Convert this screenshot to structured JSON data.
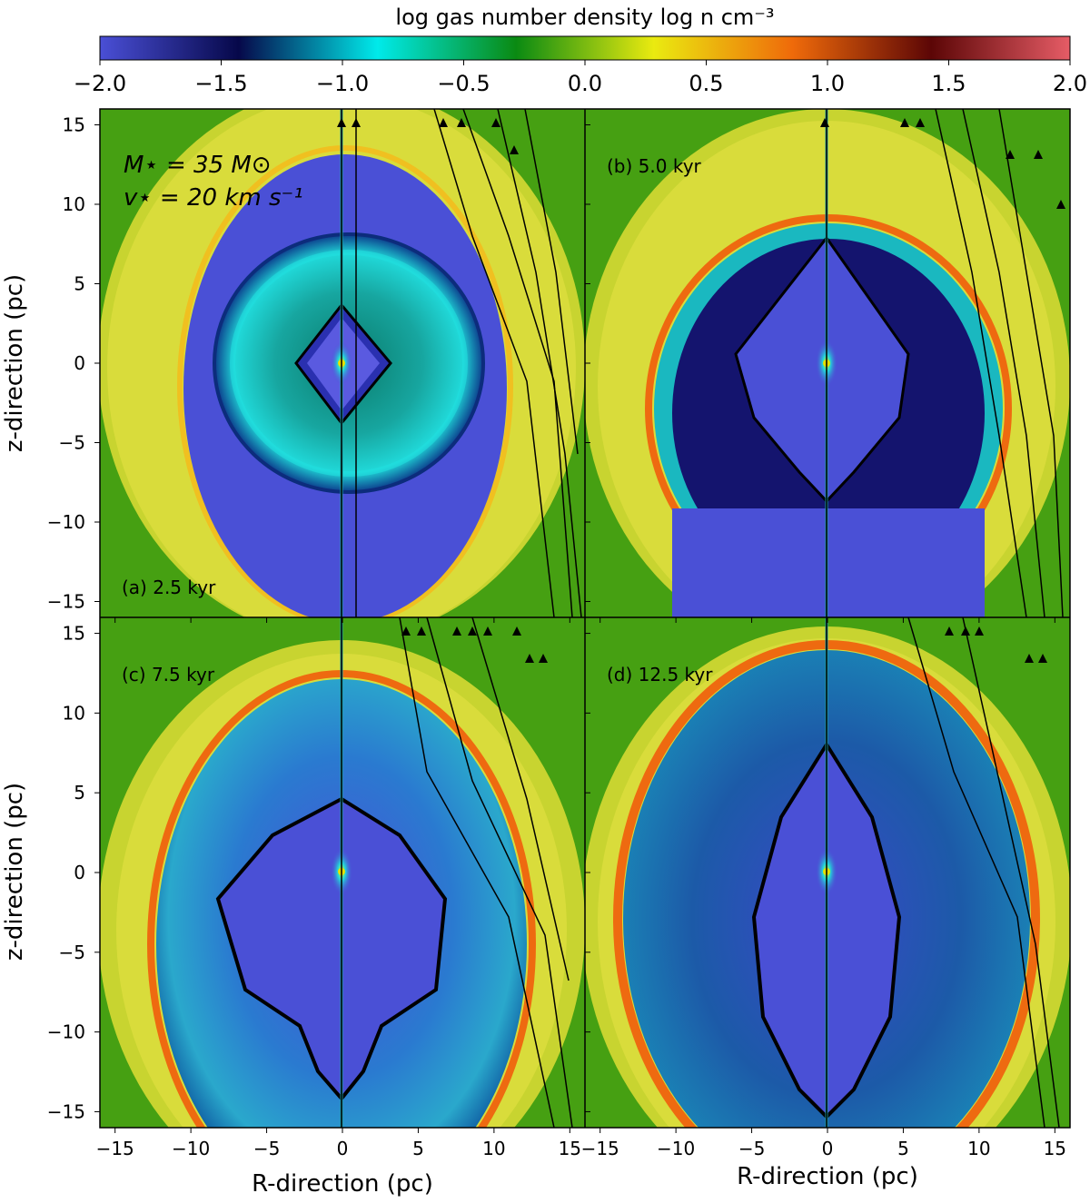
{
  "colorbar": {
    "title": "log gas number density log n cm⁻³",
    "ticks": [
      "−2.0",
      "−1.5",
      "−1.0",
      "−0.5",
      "0.0",
      "0.5",
      "1.0",
      "1.5",
      "2.0"
    ],
    "range": [
      -2.0,
      2.0
    ],
    "colors": [
      "#4a4fd6",
      "#06084a",
      "#00eaea",
      "#0a8a12",
      "#eaea10",
      "#ef6a0a",
      "#5c0606",
      "#e65c66"
    ]
  },
  "annotation": {
    "mass": "M⋆ = 35 M⊙",
    "velocity": "v⋆ = 20 km s⁻¹"
  },
  "panels": [
    {
      "label": "(a) 2.5 kyr"
    },
    {
      "label": "(b) 5.0 kyr"
    },
    {
      "label": "(c) 7.5 kyr"
    },
    {
      "label": "(d) 12.5 kyr"
    }
  ],
  "axes": {
    "xlabel": "R-direction (pc)",
    "ylabel": "z-direction (pc)",
    "left_xticks": [
      "−15",
      "−10",
      "−5",
      "0",
      "5",
      "10",
      "15"
    ],
    "right_xticks": [
      "−15",
      "−10",
      "−5",
      "0",
      "5",
      "10",
      "15"
    ],
    "yticks": [
      "15",
      "10",
      "5",
      "0",
      "−5",
      "−10",
      "−15"
    ],
    "range": [
      -16,
      16
    ]
  },
  "colors": {
    "ambient": "#46a012",
    "shell": "#d8de2a",
    "front": "#ee6a10",
    "hot_bubble": "#4a50d6",
    "dark_bubble": "#1a1a7a",
    "wind": "#18c4c4"
  }
}
